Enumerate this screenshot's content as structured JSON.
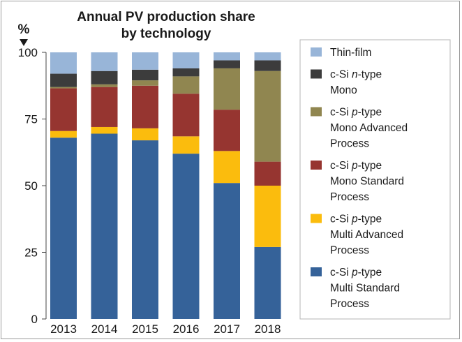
{
  "chart_data": {
    "type": "bar",
    "stacked": true,
    "title": [
      "Annual PV production share",
      "by technology"
    ],
    "ylabel": "%",
    "ylim": [
      0,
      100
    ],
    "yticks": [
      "0",
      "25",
      "50",
      "75",
      "100"
    ],
    "categories": [
      "2013",
      "2014",
      "2015",
      "2016",
      "2017",
      "2018"
    ],
    "series": [
      {
        "name": "c-Si p-type Multi Standard Process",
        "color": "#356299",
        "values": [
          68,
          69.5,
          67,
          62,
          51,
          27
        ]
      },
      {
        "name": "c-Si p-type Multi Advanced Process",
        "color": "#fbbc0d",
        "values": [
          2.5,
          2.5,
          4.5,
          6.5,
          12,
          23
        ]
      },
      {
        "name": "c-Si p-type Mono Standard Process",
        "color": "#963530",
        "values": [
          16,
          15,
          16,
          16,
          15.5,
          9
        ]
      },
      {
        "name": "c-Si p-type Mono Advanced Process",
        "color": "#908650",
        "values": [
          0.5,
          1,
          2,
          6.5,
          15.5,
          34
        ]
      },
      {
        "name": "c-Si n-type Mono",
        "color": "#3c3c3c",
        "values": [
          5,
          5,
          4,
          3,
          3,
          4
        ]
      },
      {
        "name": "Thin-film",
        "color": "#98b5d8",
        "values": [
          8,
          7,
          6.5,
          6,
          3,
          3
        ]
      }
    ],
    "legend": [
      {
        "lines": [
          [
            [
              "Thin-film",
              false
            ]
          ]
        ],
        "color": "#98b5d8"
      },
      {
        "lines": [
          [
            [
              "c-Si ",
              false
            ],
            [
              "n",
              true
            ],
            [
              "-type",
              false
            ]
          ],
          [
            [
              "Mono",
              false
            ]
          ]
        ],
        "color": "#3c3c3c"
      },
      {
        "lines": [
          [
            [
              "c-Si ",
              false
            ],
            [
              "p",
              true
            ],
            [
              "-type",
              false
            ]
          ],
          [
            [
              "Mono Advanced",
              false
            ]
          ],
          [
            [
              "Process",
              false
            ]
          ]
        ],
        "color": "#908650"
      },
      {
        "lines": [
          [
            [
              "c-Si ",
              false
            ],
            [
              "p",
              true
            ],
            [
              "-type",
              false
            ]
          ],
          [
            [
              "Mono Standard",
              false
            ]
          ],
          [
            [
              "Process",
              false
            ]
          ]
        ],
        "color": "#963530"
      },
      {
        "lines": [
          [
            [
              "c-Si ",
              false
            ],
            [
              "p",
              true
            ],
            [
              "-type",
              false
            ]
          ],
          [
            [
              "Multi Advanced",
              false
            ]
          ],
          [
            [
              "Process",
              false
            ]
          ]
        ],
        "color": "#fbbc0d"
      },
      {
        "lines": [
          [
            [
              "c-Si ",
              false
            ],
            [
              "p",
              true
            ],
            [
              "-type",
              false
            ]
          ],
          [
            [
              "Multi Standard",
              false
            ]
          ],
          [
            [
              "Process",
              false
            ]
          ]
        ],
        "color": "#356299"
      }
    ],
    "legend_position": "right",
    "grid": false
  }
}
